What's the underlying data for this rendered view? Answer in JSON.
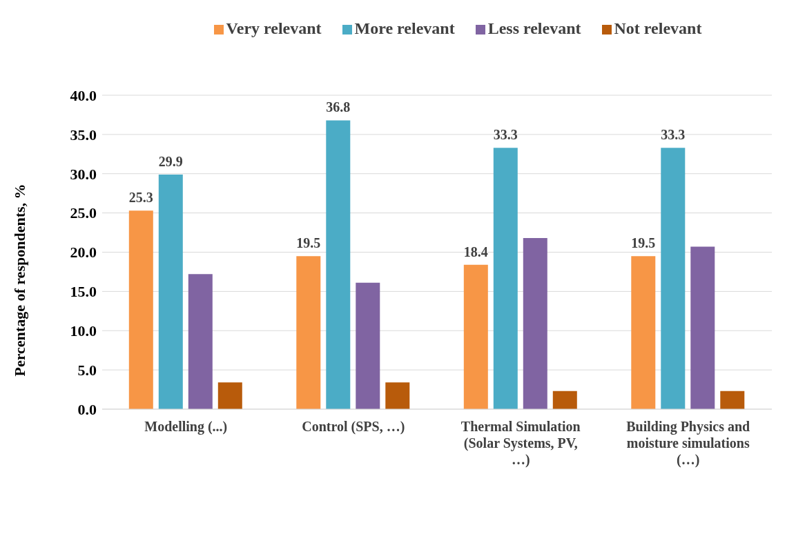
{
  "chart_data": {
    "type": "bar",
    "categories": [
      "Modelling (...)",
      "Control (SPS, …)",
      "Thermal Simulation (Solar Systems, PV, …)",
      "Building Physics and moisture simulations (…)"
    ],
    "series": [
      {
        "name": "Very relevant",
        "color": "#f79646",
        "values": [
          25.3,
          19.5,
          18.4,
          19.5
        ],
        "value_labels": [
          "25.3",
          "19.5",
          "18.4",
          "19.5"
        ]
      },
      {
        "name": "More relevant",
        "color": "#4bacc6",
        "values": [
          29.9,
          36.8,
          33.3,
          33.3
        ],
        "value_labels": [
          "29.9",
          "36.8",
          "33.3",
          "33.3"
        ]
      },
      {
        "name": "Less relevant",
        "color": "#8064a2",
        "values": [
          17.2,
          16.1,
          21.8,
          20.7
        ]
      },
      {
        "name": "Not relevant",
        "color": "#b85b0b",
        "values": [
          3.4,
          3.4,
          2.3,
          2.3
        ]
      }
    ],
    "ylabel": "Percentage of respondents, %",
    "ylim": [
      0,
      40
    ],
    "yticks": [
      {
        "value": 0,
        "label": "0.0"
      },
      {
        "value": 5,
        "label": "5.0"
      },
      {
        "value": 10,
        "label": "10.0"
      },
      {
        "value": 15,
        "label": "15.0"
      },
      {
        "value": 20,
        "label": "20.0"
      },
      {
        "value": 25,
        "label": "25.0"
      },
      {
        "value": 30,
        "label": "30.0"
      },
      {
        "value": 35,
        "label": "35.0"
      },
      {
        "value": 40,
        "label": "40.0"
      }
    ],
    "grid": "y",
    "legend": "top"
  }
}
